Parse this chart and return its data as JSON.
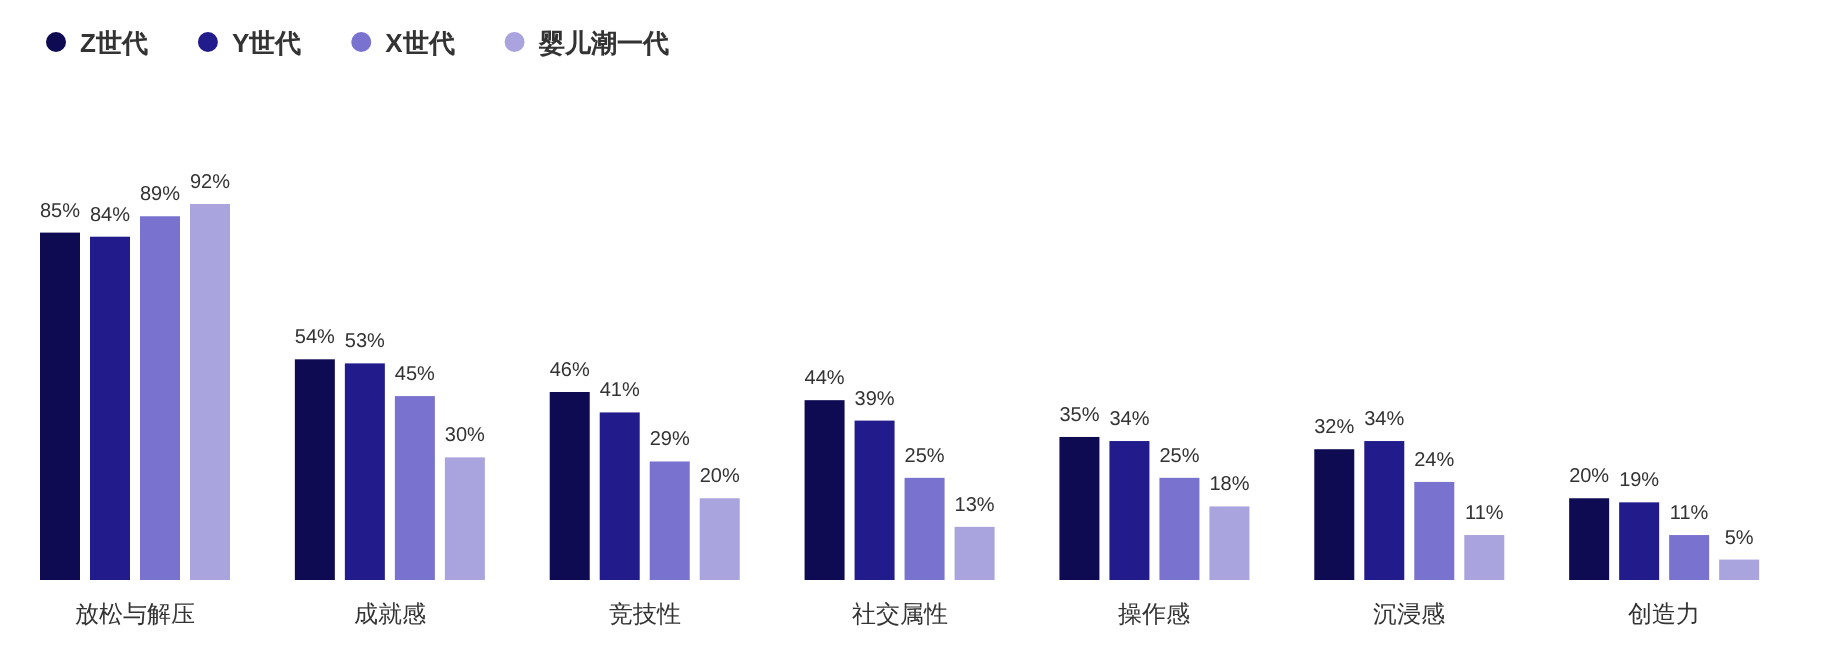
{
  "chart_data": {
    "type": "bar",
    "categories": [
      "放松与解压",
      "成就感",
      "竞技性",
      "社交属性",
      "操作感",
      "沉浸感",
      "创造力"
    ],
    "series": [
      {
        "name": "Z世代",
        "color": "#0e0b52",
        "values": [
          85,
          54,
          46,
          44,
          35,
          32,
          20
        ],
        "value_labels": [
          "85%",
          "54%",
          "46%",
          "44%",
          "35%",
          "32%",
          "20%"
        ]
      },
      {
        "name": "Y世代",
        "color": "#221b8c",
        "values": [
          84,
          53,
          41,
          39,
          34,
          34,
          19
        ],
        "value_labels": [
          "84%",
          "53%",
          "41%",
          "39%",
          "34%",
          "34%",
          "19%"
        ]
      },
      {
        "name": "X世代",
        "color": "#7a72cf",
        "values": [
          89,
          45,
          29,
          25,
          25,
          24,
          11
        ],
        "value_labels": [
          "89%",
          "45%",
          "29%",
          "25%",
          "25%",
          "24%",
          "11%"
        ]
      },
      {
        "name": "婴儿潮一代",
        "color": "#a9a3de",
        "values": [
          92,
          30,
          20,
          13,
          18,
          11,
          5
        ],
        "value_labels": [
          "92%",
          "30%",
          "20%",
          "13%",
          "18%",
          "11%",
          "5%"
        ]
      }
    ],
    "legend": "top left"
  }
}
